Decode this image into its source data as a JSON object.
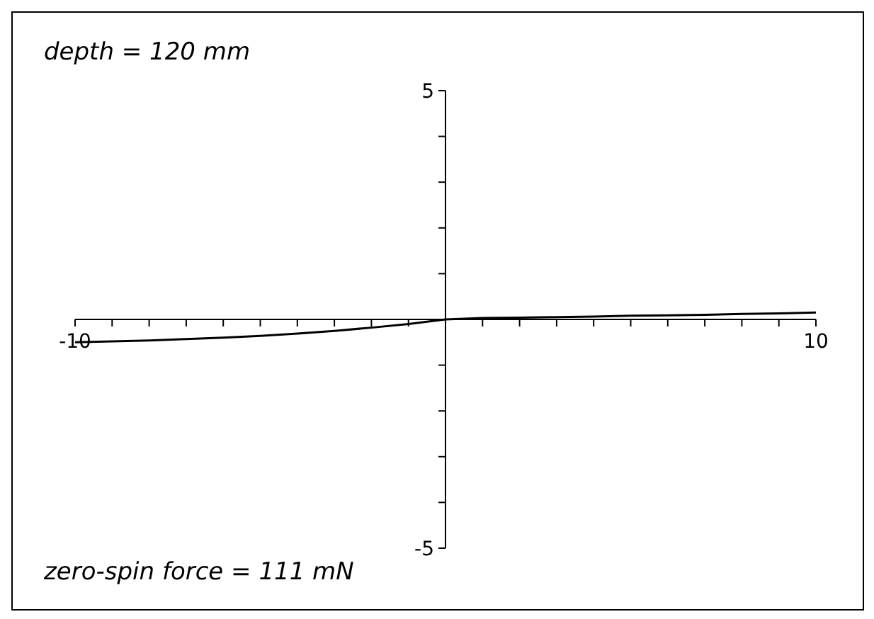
{
  "chart_data": {
    "type": "line",
    "title": "depth = 120 mm",
    "annotations": [
      "zero-spin force = 111 mN"
    ],
    "x": [
      -10,
      -9,
      -8,
      -7,
      -6,
      -5,
      -4,
      -3,
      -2,
      -1,
      0,
      1,
      2,
      3,
      4,
      5,
      6,
      7,
      8,
      9,
      10
    ],
    "series": [
      {
        "color": "#000000",
        "values": [
          -0.5,
          -0.48,
          -0.46,
          -0.43,
          -0.4,
          -0.36,
          -0.31,
          -0.25,
          -0.18,
          -0.1,
          0,
          0.03,
          0.04,
          0.05,
          0.06,
          0.08,
          0.09,
          0.1,
          0.12,
          0.13,
          0.15
        ]
      }
    ],
    "xlim": [
      -10,
      10
    ],
    "ylim": [
      -5,
      5
    ],
    "xticks": [
      {
        "value": -10,
        "label": "-10"
      },
      {
        "value": -9,
        "label": null
      },
      {
        "value": -8,
        "label": null
      },
      {
        "value": -7,
        "label": null
      },
      {
        "value": -6,
        "label": null
      },
      {
        "value": -5,
        "label": null
      },
      {
        "value": -4,
        "label": null
      },
      {
        "value": -3,
        "label": null
      },
      {
        "value": -2,
        "label": null
      },
      {
        "value": -1,
        "label": null
      },
      {
        "value": 1,
        "label": null
      },
      {
        "value": 2,
        "label": null
      },
      {
        "value": 3,
        "label": null
      },
      {
        "value": 4,
        "label": null
      },
      {
        "value": 5,
        "label": null
      },
      {
        "value": 6,
        "label": null
      },
      {
        "value": 7,
        "label": null
      },
      {
        "value": 8,
        "label": null
      },
      {
        "value": 9,
        "label": null
      },
      {
        "value": 10,
        "label": "10"
      }
    ],
    "yticks": [
      {
        "value": -5,
        "label": "-5"
      },
      {
        "value": -4,
        "label": null
      },
      {
        "value": -3,
        "label": null
      },
      {
        "value": -2,
        "label": null
      },
      {
        "value": -1,
        "label": null
      },
      {
        "value": 1,
        "label": null
      },
      {
        "value": 2,
        "label": null
      },
      {
        "value": 3,
        "label": null
      },
      {
        "value": 4,
        "label": null
      },
      {
        "value": 5,
        "label": "5"
      }
    ],
    "grid": false,
    "legend": false,
    "marker": "none",
    "line_style": "solid"
  }
}
